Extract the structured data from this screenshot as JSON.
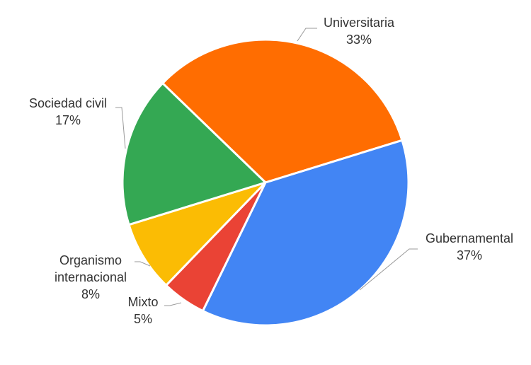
{
  "chart_data": {
    "type": "pie",
    "categories": [
      "Universitaria",
      "Gubernamental",
      "Mixto",
      "Organismo internacional",
      "Sociedad civil"
    ],
    "values": [
      33,
      37,
      5,
      8,
      17
    ],
    "value_labels": [
      "33%",
      "37%",
      "5%",
      "8%",
      "17%"
    ],
    "colors": [
      "#ff6d01",
      "#4285f4",
      "#ea4335",
      "#fbbc04",
      "#34a853"
    ]
  }
}
